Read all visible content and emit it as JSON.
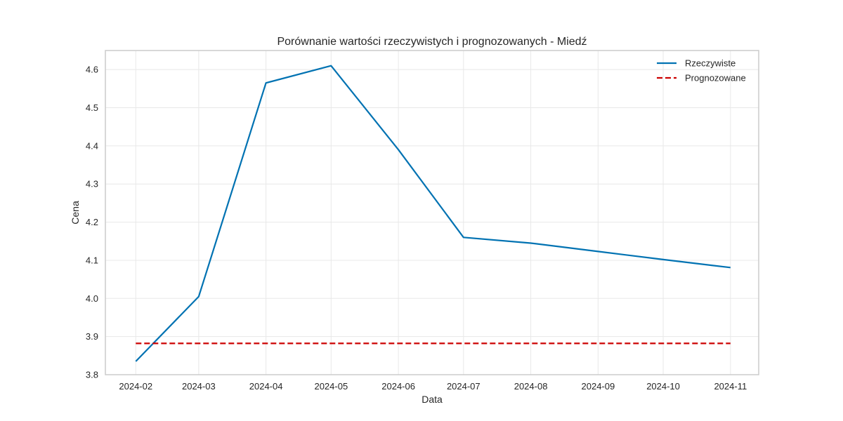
{
  "chart_data": {
    "type": "line",
    "title": "Porównanie wartości rzeczywistych i prognozowanych - Miedź",
    "xlabel": "Data",
    "ylabel": "Cena",
    "x": [
      "2024-02-01",
      "2024-03-01",
      "2024-04-01",
      "2024-05-01",
      "2024-06-01",
      "2024-07-01",
      "2024-08-01",
      "2024-09-01",
      "2024-10-01",
      "2024-11-01"
    ],
    "x_tick_labels": [
      "2024-02",
      "2024-03",
      "2024-04",
      "2024-05",
      "2024-06",
      "2024-07",
      "2024-08",
      "2024-09",
      "2024-10",
      "2024-11"
    ],
    "y_ticks": [
      3.8,
      3.9,
      4.0,
      4.1,
      4.2,
      4.3,
      4.4,
      4.5,
      4.6
    ],
    "y_tick_labels": [
      "3.8",
      "3.9",
      "4.0",
      "4.1",
      "4.2",
      "4.3",
      "4.4",
      "4.5",
      "4.6"
    ],
    "xlim": [
      "2024-01-18",
      "2024-11-14"
    ],
    "ylim": [
      3.8,
      4.65
    ],
    "grid": true,
    "legend_position": "top-right",
    "series": [
      {
        "name": "Rzeczywiste",
        "color": "#0072b2",
        "style": "solid",
        "values": [
          3.835,
          4.005,
          4.565,
          4.61,
          4.39,
          4.16,
          4.145,
          4.123,
          4.102,
          4.081
        ]
      },
      {
        "name": "Prognozowane",
        "color": "#cc0000",
        "style": "dashed",
        "values": [
          3.882,
          3.882,
          3.882,
          3.882,
          3.882,
          3.882,
          3.882,
          3.882,
          3.882,
          3.882
        ]
      }
    ]
  }
}
